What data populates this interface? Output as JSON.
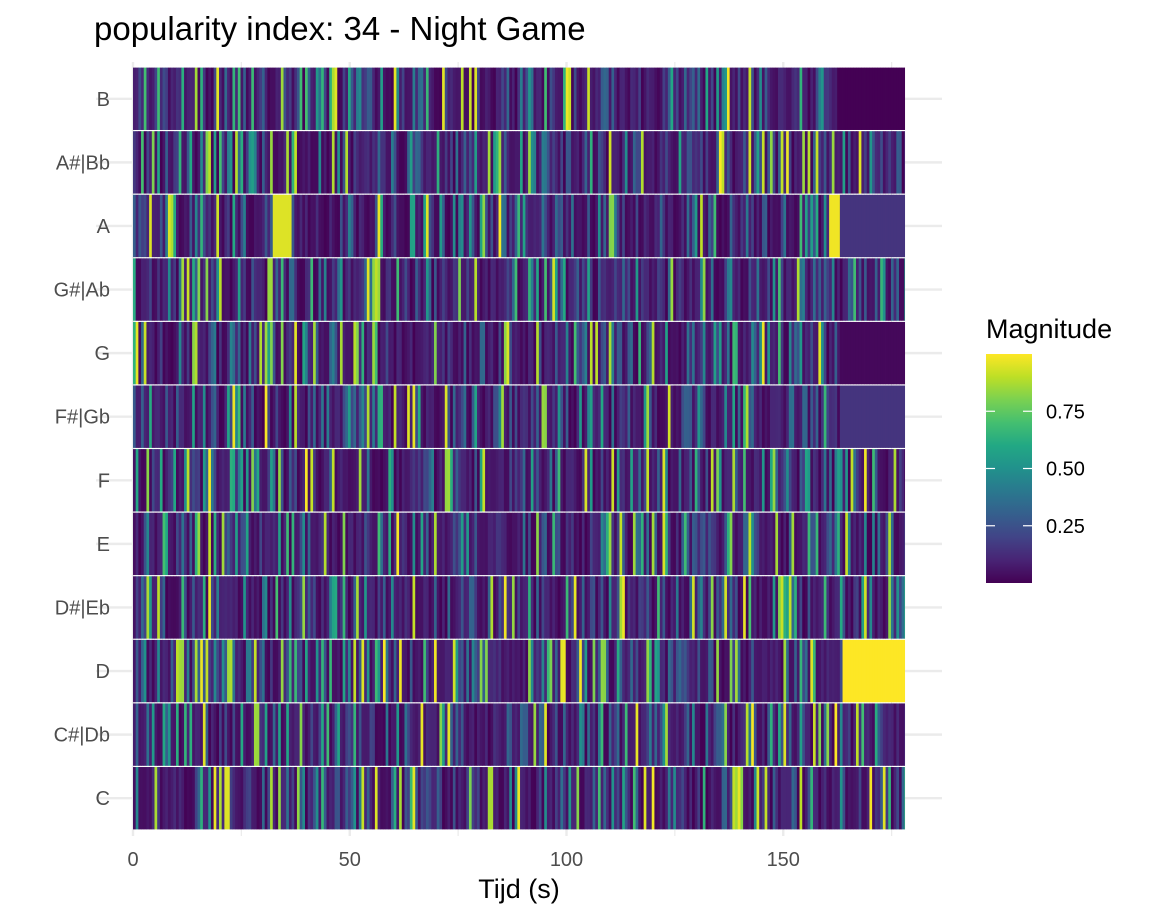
{
  "chart_data": {
    "type": "heatmap",
    "title": "popularity index:  34  -  Night Game",
    "xlabel": "Tijd (s)",
    "ylabel": "",
    "x_ticks": [
      0,
      50,
      100,
      150
    ],
    "xlim": [
      0,
      178
    ],
    "pitch_classes": [
      "C",
      "C#|Db",
      "D",
      "D#|Eb",
      "E",
      "F",
      "F#|Gb",
      "G",
      "G#|Ab",
      "A",
      "A#|Bb",
      "B"
    ],
    "legend": {
      "title": "Magnitude",
      "ticks": [
        0.25,
        0.5,
        0.75
      ],
      "tick_labels": [
        "0.25",
        "0.50",
        "0.75"
      ],
      "range": [
        0.0,
        1.0
      ],
      "colormap": "viridis"
    },
    "colors": {
      "low": "#440154",
      "mid": "#21918c",
      "high": "#fde725",
      "grid": "#ebebeb"
    },
    "highlights": {
      "D": [
        [
          0.4,
          1.0
        ],
        [
          163.5,
          178,
          1.0
        ]
      ],
      "A": [
        [
          32,
          36,
          0.95
        ],
        [
          160,
          162.5,
          0.98
        ],
        [
          162.5,
          178,
          0.15
        ]
      ],
      "F#|Gb": [
        [
          163,
          178,
          0.15
        ]
      ],
      "B": [
        [
          163,
          178,
          0.0
        ]
      ],
      "G": [
        [
          163,
          178,
          0.02
        ]
      ]
    }
  }
}
